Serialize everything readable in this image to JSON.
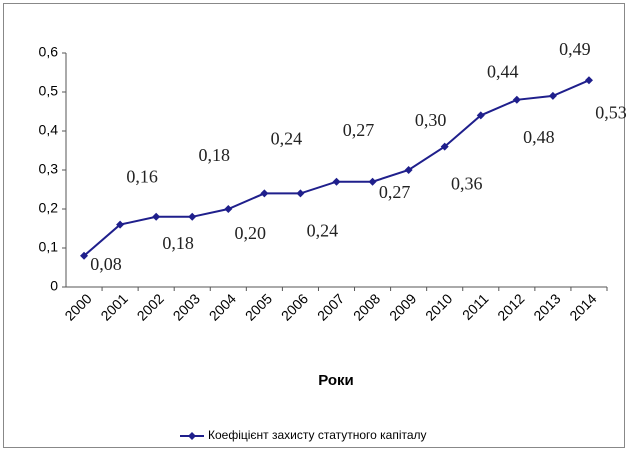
{
  "chart_data": {
    "type": "line",
    "x_label": "Роки",
    "categories": [
      "2000",
      "2001",
      "2002",
      "2003",
      "2004",
      "2005",
      "2006",
      "2007",
      "2008",
      "2009",
      "2010",
      "2011",
      "2012",
      "2013",
      "2014"
    ],
    "series": [
      {
        "name": "Коефіцієнт захисту статутного капіталу",
        "color": "#1f1f8c",
        "values": [
          0.08,
          0.16,
          0.18,
          0.18,
          0.2,
          0.24,
          0.24,
          0.27,
          0.27,
          0.3,
          0.36,
          0.44,
          0.48,
          0.49,
          0.53
        ],
        "value_labels": [
          "0,08",
          "0,16",
          "0,18",
          "0,18",
          "0,20",
          "0,24",
          "0,24",
          "0,27",
          "0,27",
          "0,30",
          "0,36",
          "0,44",
          "0,48",
          "0,49",
          "0,53"
        ]
      }
    ],
    "ylim": [
      0,
      0.6
    ],
    "yticks": [
      0,
      {
        "value": 0.1,
        "label": "0,1"
      },
      {
        "value": 0.2,
        "label": "0,2"
      },
      {
        "value": 0.3,
        "label": "0,3"
      },
      {
        "value": 0.4,
        "label": "0,4"
      },
      {
        "value": 0.5,
        "label": "0,5"
      },
      {
        "value": 0.6,
        "label": "0,6"
      }
    ],
    "grid": false,
    "legend": "bottom"
  }
}
